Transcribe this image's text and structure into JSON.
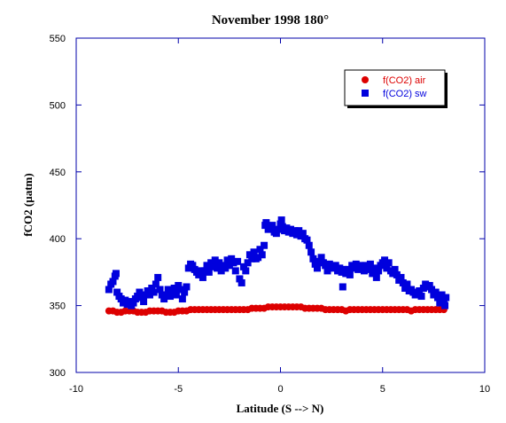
{
  "chart_data": {
    "type": "scatter",
    "title": "November 1998 180°",
    "xlabel": "Latitude (S --> N)",
    "ylabel": "fCO2 (µatm)",
    "xlim": [
      -10,
      10
    ],
    "ylim": [
      300,
      550
    ],
    "xticks": [
      -10,
      -5,
      0,
      5,
      10
    ],
    "yticks": [
      300,
      350,
      400,
      450,
      500,
      550
    ],
    "xtick_labels": [
      "-10",
      "-5",
      "0",
      "5",
      "10"
    ],
    "ytick_labels": [
      "300",
      "350",
      "400",
      "450",
      "500",
      "550"
    ],
    "grid": false,
    "legend_position": "top-right",
    "series": [
      {
        "name": "f(CO2) air",
        "marker": "circle",
        "color": "#dd0000",
        "points": [
          [
            -8.4,
            346
          ],
          [
            -8.2,
            346
          ],
          [
            -8.0,
            345
          ],
          [
            -7.8,
            345
          ],
          [
            -7.6,
            346
          ],
          [
            -7.4,
            346
          ],
          [
            -7.2,
            346
          ],
          [
            -7.0,
            345
          ],
          [
            -6.8,
            345
          ],
          [
            -6.6,
            345
          ],
          [
            -6.4,
            346
          ],
          [
            -6.2,
            346
          ],
          [
            -6.0,
            346
          ],
          [
            -5.8,
            346
          ],
          [
            -5.6,
            345
          ],
          [
            -5.4,
            345
          ],
          [
            -5.2,
            345
          ],
          [
            -5.0,
            346
          ],
          [
            -4.8,
            346
          ],
          [
            -4.6,
            346
          ],
          [
            -4.4,
            347
          ],
          [
            -4.2,
            347
          ],
          [
            -4.0,
            347
          ],
          [
            -3.8,
            347
          ],
          [
            -3.6,
            347
          ],
          [
            -3.4,
            347
          ],
          [
            -3.2,
            347
          ],
          [
            -3.0,
            347
          ],
          [
            -2.8,
            347
          ],
          [
            -2.6,
            347
          ],
          [
            -2.4,
            347
          ],
          [
            -2.2,
            347
          ],
          [
            -2.0,
            347
          ],
          [
            -1.8,
            347
          ],
          [
            -1.6,
            347
          ],
          [
            -1.4,
            348
          ],
          [
            -1.2,
            348
          ],
          [
            -1.0,
            348
          ],
          [
            -0.8,
            348
          ],
          [
            -0.6,
            349
          ],
          [
            -0.4,
            349
          ],
          [
            -0.2,
            349
          ],
          [
            0.0,
            349
          ],
          [
            0.2,
            349
          ],
          [
            0.4,
            349
          ],
          [
            0.6,
            349
          ],
          [
            0.8,
            349
          ],
          [
            1.0,
            349
          ],
          [
            1.2,
            348
          ],
          [
            1.4,
            348
          ],
          [
            1.6,
            348
          ],
          [
            1.8,
            348
          ],
          [
            2.0,
            348
          ],
          [
            2.2,
            347
          ],
          [
            2.4,
            347
          ],
          [
            2.6,
            347
          ],
          [
            2.8,
            347
          ],
          [
            3.0,
            347
          ],
          [
            3.2,
            346
          ],
          [
            3.4,
            347
          ],
          [
            3.6,
            347
          ],
          [
            3.8,
            347
          ],
          [
            4.0,
            347
          ],
          [
            4.2,
            347
          ],
          [
            4.4,
            347
          ],
          [
            4.6,
            347
          ],
          [
            4.8,
            347
          ],
          [
            5.0,
            347
          ],
          [
            5.2,
            347
          ],
          [
            5.4,
            347
          ],
          [
            5.6,
            347
          ],
          [
            5.8,
            347
          ],
          [
            6.0,
            347
          ],
          [
            6.2,
            347
          ],
          [
            6.4,
            346
          ],
          [
            6.6,
            347
          ],
          [
            6.8,
            347
          ],
          [
            7.0,
            347
          ],
          [
            7.2,
            347
          ],
          [
            7.4,
            347
          ],
          [
            7.6,
            347
          ],
          [
            7.8,
            347
          ],
          [
            8.0,
            347
          ]
        ]
      },
      {
        "name": "f(CO2) sw",
        "marker": "square",
        "color": "#0000dd",
        "points": [
          [
            -8.4,
            362
          ],
          [
            -8.3,
            366
          ],
          [
            -8.2,
            368
          ],
          [
            -8.1,
            372
          ],
          [
            -8.05,
            374
          ],
          [
            -8.0,
            360
          ],
          [
            -7.9,
            357
          ],
          [
            -7.8,
            355
          ],
          [
            -7.7,
            352
          ],
          [
            -7.6,
            354
          ],
          [
            -7.5,
            351
          ],
          [
            -7.4,
            353
          ],
          [
            -7.3,
            350
          ],
          [
            -7.2,
            352
          ],
          [
            -7.1,
            355
          ],
          [
            -7.0,
            357
          ],
          [
            -6.9,
            360
          ],
          [
            -6.8,
            356
          ],
          [
            -6.7,
            353
          ],
          [
            -6.6,
            358
          ],
          [
            -6.5,
            361
          ],
          [
            -6.4,
            358
          ],
          [
            -6.3,
            363
          ],
          [
            -6.2,
            360
          ],
          [
            -6.1,
            366
          ],
          [
            -6.0,
            371
          ],
          [
            -5.9,
            362
          ],
          [
            -5.8,
            358
          ],
          [
            -5.7,
            355
          ],
          [
            -5.6,
            358
          ],
          [
            -5.5,
            362
          ],
          [
            -5.4,
            357
          ],
          [
            -5.3,
            360
          ],
          [
            -5.2,
            363
          ],
          [
            -5.1,
            358
          ],
          [
            -5.0,
            365
          ],
          [
            -4.9,
            362
          ],
          [
            -4.8,
            355
          ],
          [
            -4.7,
            360
          ],
          [
            -4.6,
            364
          ],
          [
            -4.5,
            378
          ],
          [
            -4.4,
            381
          ],
          [
            -4.3,
            380
          ],
          [
            -4.2,
            377
          ],
          [
            -4.1,
            375
          ],
          [
            -4.0,
            373
          ],
          [
            -3.9,
            376
          ],
          [
            -3.8,
            371
          ],
          [
            -3.7,
            376
          ],
          [
            -3.6,
            380
          ],
          [
            -3.5,
            375
          ],
          [
            -3.4,
            382
          ],
          [
            -3.3,
            379
          ],
          [
            -3.2,
            384
          ],
          [
            -3.1,
            378
          ],
          [
            -3.0,
            382
          ],
          [
            -2.9,
            376
          ],
          [
            -2.8,
            380
          ],
          [
            -2.7,
            378
          ],
          [
            -2.6,
            384
          ],
          [
            -2.5,
            380
          ],
          [
            -2.4,
            385
          ],
          [
            -2.3,
            382
          ],
          [
            -2.2,
            376
          ],
          [
            -2.1,
            383
          ],
          [
            -2.0,
            370
          ],
          [
            -1.9,
            367
          ],
          [
            -1.8,
            379
          ],
          [
            -1.7,
            376
          ],
          [
            -1.6,
            382
          ],
          [
            -1.5,
            388
          ],
          [
            -1.4,
            385
          ],
          [
            -1.3,
            390
          ],
          [
            -1.2,
            385
          ],
          [
            -1.1,
            386
          ],
          [
            -1.0,
            392
          ],
          [
            -0.9,
            388
          ],
          [
            -0.8,
            395
          ],
          [
            -0.75,
            410
          ],
          [
            -0.7,
            412
          ],
          [
            -0.6,
            407
          ],
          [
            -0.5,
            408
          ],
          [
            -0.4,
            410
          ],
          [
            -0.3,
            405
          ],
          [
            -0.2,
            404
          ],
          [
            -0.1,
            407
          ],
          [
            0.0,
            411
          ],
          [
            0.05,
            414
          ],
          [
            0.1,
            409
          ],
          [
            0.2,
            406
          ],
          [
            0.3,
            408
          ],
          [
            0.4,
            405
          ],
          [
            0.5,
            407
          ],
          [
            0.6,
            404
          ],
          [
            0.7,
            406
          ],
          [
            0.8,
            403
          ],
          [
            0.9,
            406
          ],
          [
            1.0,
            402
          ],
          [
            1.1,
            404
          ],
          [
            1.2,
            400
          ],
          [
            1.3,
            399
          ],
          [
            1.4,
            395
          ],
          [
            1.5,
            390
          ],
          [
            1.6,
            385
          ],
          [
            1.7,
            381
          ],
          [
            1.8,
            378
          ],
          [
            1.9,
            383
          ],
          [
            2.0,
            386
          ],
          [
            2.1,
            382
          ],
          [
            2.2,
            380
          ],
          [
            2.3,
            376
          ],
          [
            2.4,
            381
          ],
          [
            2.5,
            379
          ],
          [
            2.6,
            378
          ],
          [
            2.7,
            380
          ],
          [
            2.8,
            376
          ],
          [
            2.9,
            378
          ],
          [
            3.0,
            375
          ],
          [
            3.05,
            364
          ],
          [
            3.1,
            377
          ],
          [
            3.2,
            374
          ],
          [
            3.3,
            377
          ],
          [
            3.4,
            373
          ],
          [
            3.5,
            380
          ],
          [
            3.6,
            378
          ],
          [
            3.7,
            381
          ],
          [
            3.8,
            377
          ],
          [
            3.9,
            380
          ],
          [
            4.0,
            378
          ],
          [
            4.1,
            376
          ],
          [
            4.2,
            380
          ],
          [
            4.3,
            377
          ],
          [
            4.4,
            381
          ],
          [
            4.5,
            374
          ],
          [
            4.6,
            378
          ],
          [
            4.7,
            371
          ],
          [
            4.8,
            376
          ],
          [
            4.9,
            380
          ],
          [
            5.0,
            382
          ],
          [
            5.1,
            384
          ],
          [
            5.2,
            378
          ],
          [
            5.3,
            382
          ],
          [
            5.4,
            376
          ],
          [
            5.5,
            374
          ],
          [
            5.6,
            377
          ],
          [
            5.7,
            373
          ],
          [
            5.8,
            369
          ],
          [
            5.9,
            371
          ],
          [
            6.0,
            367
          ],
          [
            6.1,
            363
          ],
          [
            6.2,
            366
          ],
          [
            6.3,
            361
          ],
          [
            6.4,
            362
          ],
          [
            6.5,
            360
          ],
          [
            6.6,
            358
          ],
          [
            6.7,
            359
          ],
          [
            6.8,
            361
          ],
          [
            6.9,
            357
          ],
          [
            7.0,
            363
          ],
          [
            7.1,
            366
          ],
          [
            7.2,
            364
          ],
          [
            7.3,
            365
          ],
          [
            7.4,
            362
          ],
          [
            7.5,
            358
          ],
          [
            7.6,
            360
          ],
          [
            7.7,
            356
          ],
          [
            7.8,
            352
          ],
          [
            7.9,
            358
          ],
          [
            8.0,
            353
          ],
          [
            8.05,
            350
          ],
          [
            8.1,
            356
          ]
        ]
      }
    ]
  }
}
